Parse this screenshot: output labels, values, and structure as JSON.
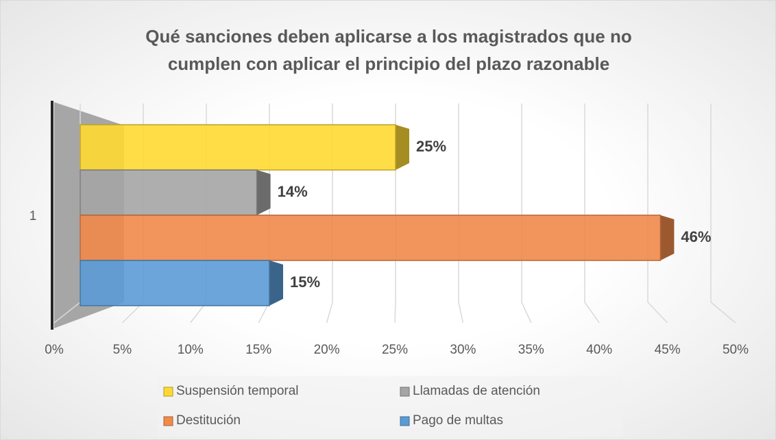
{
  "chart_data": {
    "type": "bar3d",
    "title": "Qué sanciones deben aplicarse a los magistrados que no cumplen con aplicar el principio del plazo razonable",
    "categories": [
      "1"
    ],
    "series": [
      {
        "name": "Suspensión temporal",
        "color": "#ffd933",
        "values": [
          25
        ],
        "value_labels": [
          "25%"
        ]
      },
      {
        "name": "Llamadas de atención",
        "color": "#a5a5a5",
        "values": [
          14
        ],
        "value_labels": [
          "14%"
        ]
      },
      {
        "name": "Destitución",
        "color": "#f08a4b",
        "values": [
          46
        ],
        "value_labels": [
          "46%"
        ]
      },
      {
        "name": "Pago de multas",
        "color": "#5b9bd5",
        "values": [
          15
        ],
        "value_labels": [
          "15%"
        ]
      }
    ],
    "xlim": [
      0,
      50
    ],
    "xticks": [
      {
        "value": 0,
        "label": "0%"
      },
      {
        "value": 5,
        "label": "5%"
      },
      {
        "value": 10,
        "label": "10%"
      },
      {
        "value": 15,
        "label": "15%"
      },
      {
        "value": 20,
        "label": "20%"
      },
      {
        "value": 25,
        "label": "25%"
      },
      {
        "value": 30,
        "label": "30%"
      },
      {
        "value": 35,
        "label": "35%"
      },
      {
        "value": 40,
        "label": "40%"
      },
      {
        "value": 45,
        "label": "45%"
      },
      {
        "value": 50,
        "label": "50%"
      }
    ],
    "grid": true,
    "legend": "bottom"
  }
}
